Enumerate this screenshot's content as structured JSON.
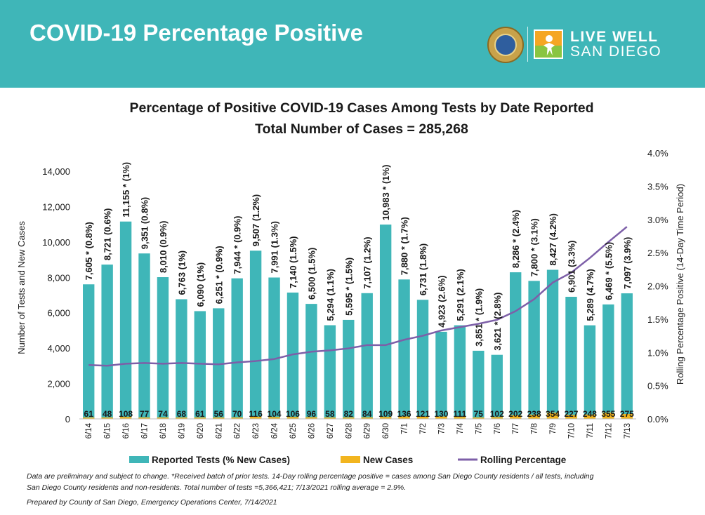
{
  "header": {
    "title": "COVID-19 Percentage Positive",
    "logo_line1": "LIVE WELL",
    "logo_line2": "SAN DIEGO"
  },
  "chart_data": {
    "type": "bar",
    "title": "Percentage of Positive COVID-19 Cases Among Tests by Date Reported",
    "subtitle": "Total Number of Cases = 285,268",
    "ylabel": "Number of Tests and New Cases",
    "y2label": "Rolling Percentage Positive (14-Day Time Period)",
    "ylim": [
      0,
      14000
    ],
    "yticks": [
      "0",
      "2,000",
      "4,000",
      "6,000",
      "8,000",
      "10,000",
      "12,000",
      "14,000"
    ],
    "y2lim": [
      0,
      4.0
    ],
    "y2ticks": [
      "0.0%",
      "0.5%",
      "1.0%",
      "1.5%",
      "2.0%",
      "2.5%",
      "3.0%",
      "3.5%",
      "4.0%"
    ],
    "categories": [
      "6/14",
      "6/15",
      "6/16",
      "6/17",
      "6/18",
      "6/19",
      "6/20",
      "6/21",
      "6/22",
      "6/23",
      "6/24",
      "6/25",
      "6/26",
      "6/27",
      "6/28",
      "6/29",
      "6/30",
      "7/1",
      "7/2",
      "7/3",
      "7/4",
      "7/5",
      "7/6",
      "7/7",
      "7/8",
      "7/9",
      "7/10",
      "7/11",
      "7/12",
      "7/13"
    ],
    "series": [
      {
        "name": "Reported Tests (% New Cases)",
        "color": "#3fb6b8",
        "values": [
          7605,
          8721,
          11155,
          9351,
          8010,
          6763,
          6090,
          6251,
          7944,
          9507,
          7991,
          7140,
          6500,
          5294,
          5595,
          7107,
          10983,
          7880,
          6731,
          4923,
          5291,
          3851,
          3621,
          8286,
          7800,
          8427,
          6901,
          5289,
          6469,
          7097
        ],
        "labels": [
          "7,605 * (0.8%)",
          "8,721 (0.6%)",
          "11,155 * (1%)",
          "9,351 (0.8%)",
          "8,010 (0.9%)",
          "6,763 (1%)",
          "6,090 (1%)",
          "6,251 * (0.9%)",
          "7,944 * (0.9%)",
          "9,507 (1.2%)",
          "7,991 (1.3%)",
          "7,140 (1.5%)",
          "6,500 (1.5%)",
          "5,294 (1.1%)",
          "5,595 * (1.5%)",
          "7,107 (1.2%)",
          "10,983 * (1%)",
          "7,880 * (1.7%)",
          "6,731 (1.8%)",
          "4,923 (2.6%)",
          "5,291 (2.1%)",
          "3,851 * (1.9%)",
          "3,621 * (2.8%)",
          "8,286 * (2.4%)",
          "7,800 * (3.1%)",
          "8,427 (4.2%)",
          "6,901 (3.3%)",
          "5,289 (4.7%)",
          "6,469 * (5.5%)",
          "7,097 (3.9%)"
        ]
      },
      {
        "name": "New Cases",
        "color": "#f2b51f",
        "values": [
          61,
          48,
          108,
          77,
          74,
          68,
          61,
          56,
          70,
          116,
          104,
          106,
          96,
          58,
          82,
          84,
          109,
          136,
          121,
          130,
          111,
          75,
          102,
          202,
          238,
          354,
          227,
          248,
          355,
          275
        ]
      },
      {
        "name": "Rolling Percentage",
        "color": "#7d5fa8",
        "axis": "right",
        "values": [
          0.81,
          0.8,
          0.83,
          0.84,
          0.83,
          0.84,
          0.83,
          0.82,
          0.85,
          0.87,
          0.9,
          0.97,
          1.01,
          1.03,
          1.06,
          1.11,
          1.11,
          1.19,
          1.25,
          1.33,
          1.38,
          1.43,
          1.49,
          1.62,
          1.8,
          2.05,
          2.2,
          2.42,
          2.66,
          2.89
        ]
      }
    ]
  },
  "footnotes": [
    "Data are preliminary and subject to change. *Received batch of prior tests. 14-Day rolling percentage positive = cases among San Diego County residents / all tests, including",
    "San Diego County residents and non-residents. Total number of tests =5,366,421; 7/13/2021 rolling average = 2.9%.",
    "Prepared by County of San Diego, Emergency Operations Center, 7/14/2021"
  ]
}
